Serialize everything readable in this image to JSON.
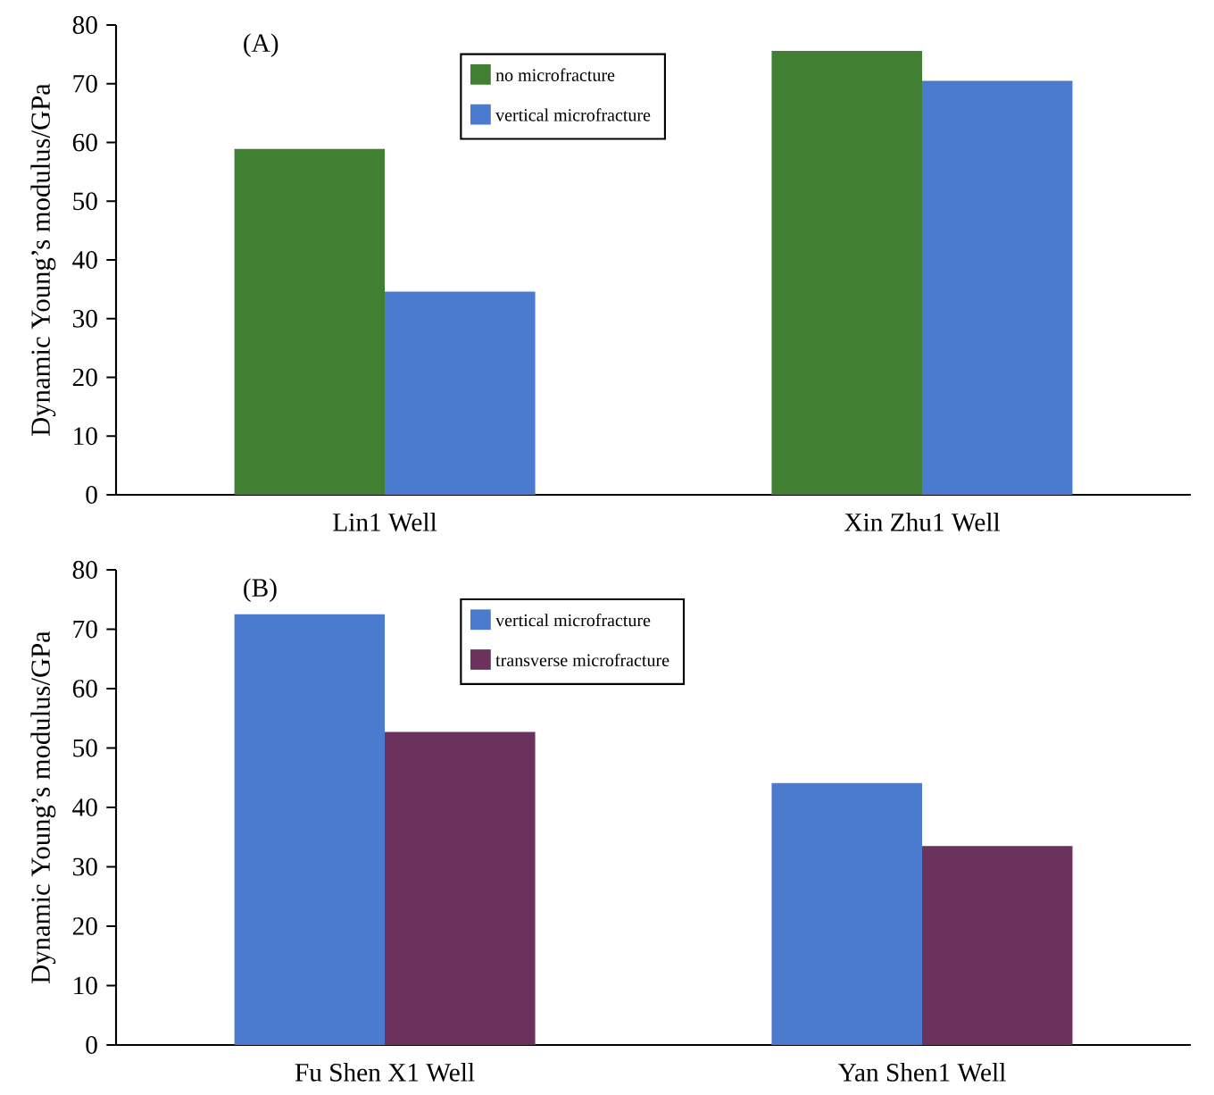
{
  "chart_data": [
    {
      "type": "bar",
      "annotations": [
        "(A)"
      ],
      "ylabel": "Dynamic Young’s modulus/GPa",
      "categories": [
        "Lin1 Well",
        "Xin Zhu1 Well"
      ],
      "series": [
        {
          "name": "no microfracture",
          "color": "#417f32",
          "values": [
            58.9,
            75.6
          ]
        },
        {
          "name": "vertical microfracture",
          "color": "#4a7bcf",
          "values": [
            34.6,
            70.5
          ]
        }
      ],
      "ylim": [
        0,
        80
      ],
      "yticks": [
        0,
        10,
        20,
        30,
        40,
        50,
        60,
        70,
        80
      ],
      "legend": "top"
    },
    {
      "type": "bar",
      "annotations": [
        "(B)"
      ],
      "ylabel": "Dynamic Young’s modulus/GPa",
      "categories": [
        "Fu Shen X1 Well",
        "Yan Shen1 Well"
      ],
      "series": [
        {
          "name": "vertical microfracture",
          "color": "#4a7bcf",
          "values": [
            72.5,
            44.1
          ]
        },
        {
          "name": "transverse microfracture",
          "color": "#6b325e",
          "values": [
            52.7,
            33.5
          ]
        }
      ],
      "ylim": [
        0,
        80
      ],
      "yticks": [
        0,
        10,
        20,
        30,
        40,
        50,
        60,
        70,
        80
      ],
      "legend": "top"
    }
  ]
}
